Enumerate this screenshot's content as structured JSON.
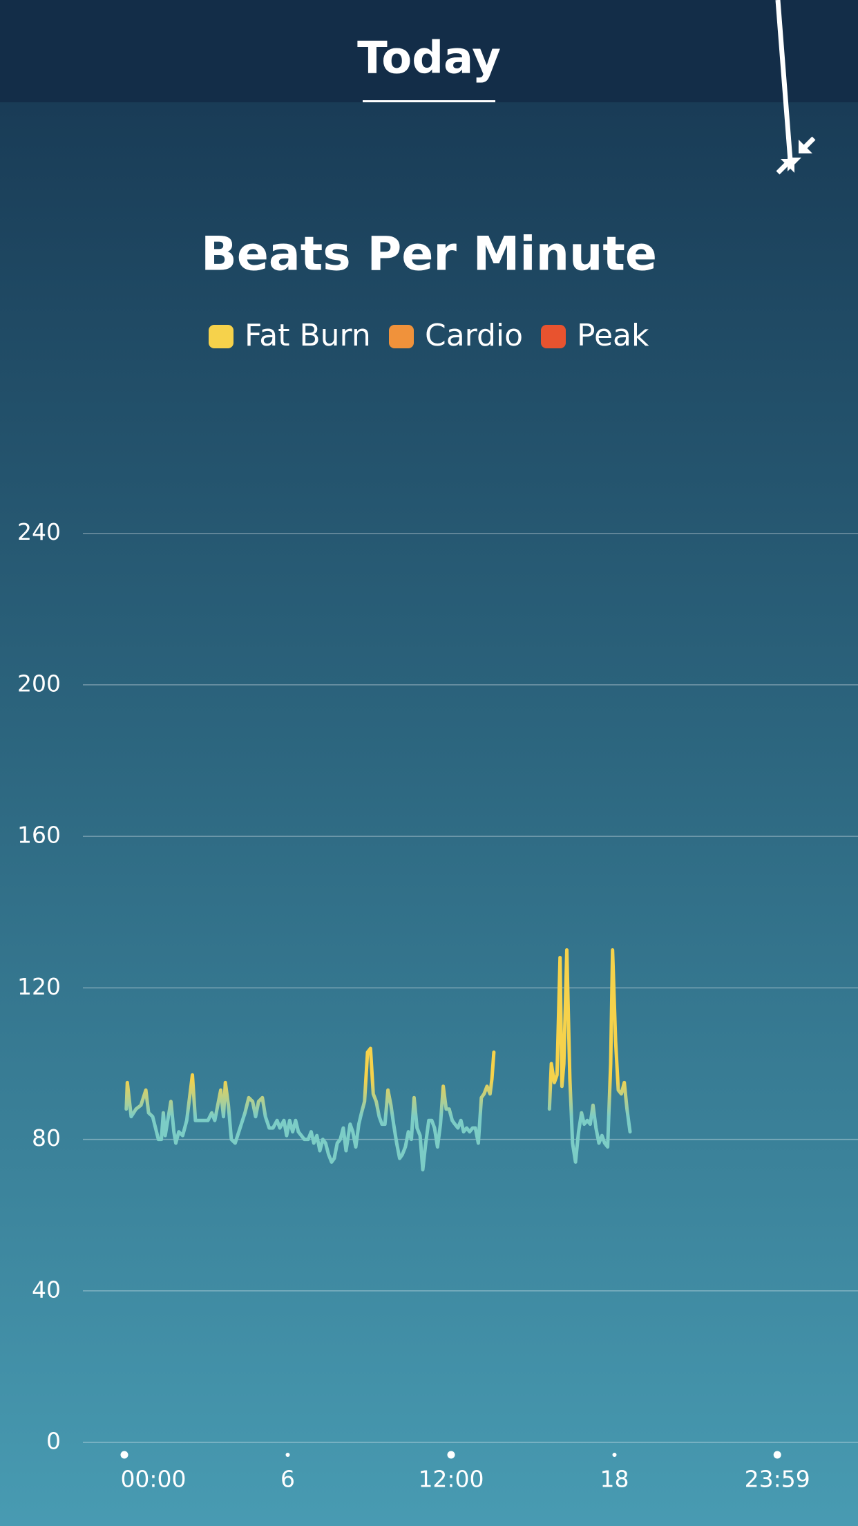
{
  "header": {
    "tab": "Today"
  },
  "chart_data": {
    "type": "line",
    "title": "Beats Per Minute",
    "legend": [
      {
        "name": "Fat Burn",
        "color": "#f6d24b"
      },
      {
        "name": "Cardio",
        "color": "#f0923b"
      },
      {
        "name": "Peak",
        "color": "#e8532f"
      }
    ],
    "x": [
      0.07,
      0.11,
      0.25,
      0.43,
      0.61,
      0.79,
      0.89,
      1.04,
      1.25,
      1.36,
      1.43,
      1.5,
      1.71,
      1.82,
      1.89,
      2.0,
      2.14,
      2.29,
      2.5,
      2.61,
      2.79,
      3.07,
      3.21,
      3.32,
      3.54,
      3.64,
      3.71,
      3.82,
      3.93,
      4.07,
      4.25,
      4.43,
      4.57,
      4.71,
      4.82,
      4.93,
      5.07,
      5.18,
      5.32,
      5.46,
      5.61,
      5.71,
      5.86,
      5.96,
      6.07,
      6.18,
      6.29,
      6.39,
      6.61,
      6.75,
      6.86,
      6.96,
      7.07,
      7.18,
      7.29,
      7.39,
      7.5,
      7.61,
      7.71,
      7.82,
      7.93,
      8.04,
      8.14,
      8.29,
      8.39,
      8.5,
      8.61,
      8.71,
      8.82,
      8.93,
      9.04,
      9.14,
      9.25,
      9.36,
      9.46,
      9.57,
      9.68,
      9.79,
      9.89,
      10.0,
      10.11,
      10.21,
      10.32,
      10.43,
      10.54,
      10.64,
      10.75,
      10.86,
      10.96,
      11.07,
      11.18,
      11.29,
      11.39,
      11.5,
      11.61,
      11.71,
      11.82,
      11.93,
      12.04,
      12.14,
      12.25,
      12.36,
      12.46,
      12.57,
      12.68,
      12.79,
      12.89,
      13.0,
      13.11,
      13.21,
      13.32,
      13.43,
      13.5,
      13.57,
      14.5,
      15.61,
      15.68,
      15.79,
      15.89,
      16.0,
      16.07,
      16.14,
      16.25,
      16.36,
      16.46,
      16.57,
      16.68,
      16.79,
      16.89,
      17.0,
      17.11,
      17.21,
      17.32,
      17.43,
      17.54,
      17.64,
      17.75,
      17.86,
      17.93,
      18.04,
      18.14,
      18.25,
      18.36,
      18.46,
      18.57
    ],
    "values": [
      88,
      95,
      86,
      88,
      89,
      93,
      87,
      86,
      80,
      80,
      87,
      81,
      90,
      82,
      79,
      82,
      81,
      85,
      97,
      85,
      85,
      85,
      87,
      85,
      93,
      86,
      95,
      89,
      80,
      79,
      83,
      87,
      91,
      90,
      86,
      90,
      91,
      86,
      83,
      83,
      85,
      83,
      85,
      81,
      85,
      82,
      85,
      82,
      80,
      80,
      82,
      79,
      81,
      77,
      80,
      79,
      76,
      74,
      75,
      79,
      80,
      83,
      77,
      84,
      82,
      78,
      84,
      87,
      90,
      103,
      104,
      92,
      90,
      86,
      84,
      84,
      93,
      89,
      84,
      79,
      75,
      76,
      78,
      82,
      80,
      91,
      83,
      81,
      72,
      79,
      85,
      85,
      83,
      78,
      84,
      94,
      88,
      88,
      85,
      84,
      83,
      85,
      82,
      83,
      82,
      83,
      83,
      79,
      91,
      92,
      94,
      92,
      96,
      103,
      null,
      88,
      100,
      95,
      97,
      128,
      94,
      100,
      130,
      96,
      79,
      74,
      82,
      87,
      84,
      85,
      84,
      89,
      83,
      79,
      81,
      79,
      78,
      100,
      130,
      106,
      93,
      92,
      95,
      88,
      82
    ],
    "xlim": [
      0,
      24
    ],
    "xticks": [
      {
        "value": 0,
        "label": "00:00"
      },
      6,
      {
        "value": 12,
        "label": "12:00"
      },
      18,
      {
        "value": 23.98,
        "label": "23:59"
      }
    ],
    "ylim": [
      0,
      240
    ],
    "yticks": [
      0,
      40,
      80,
      120,
      160,
      200,
      240
    ],
    "grid": true
  }
}
